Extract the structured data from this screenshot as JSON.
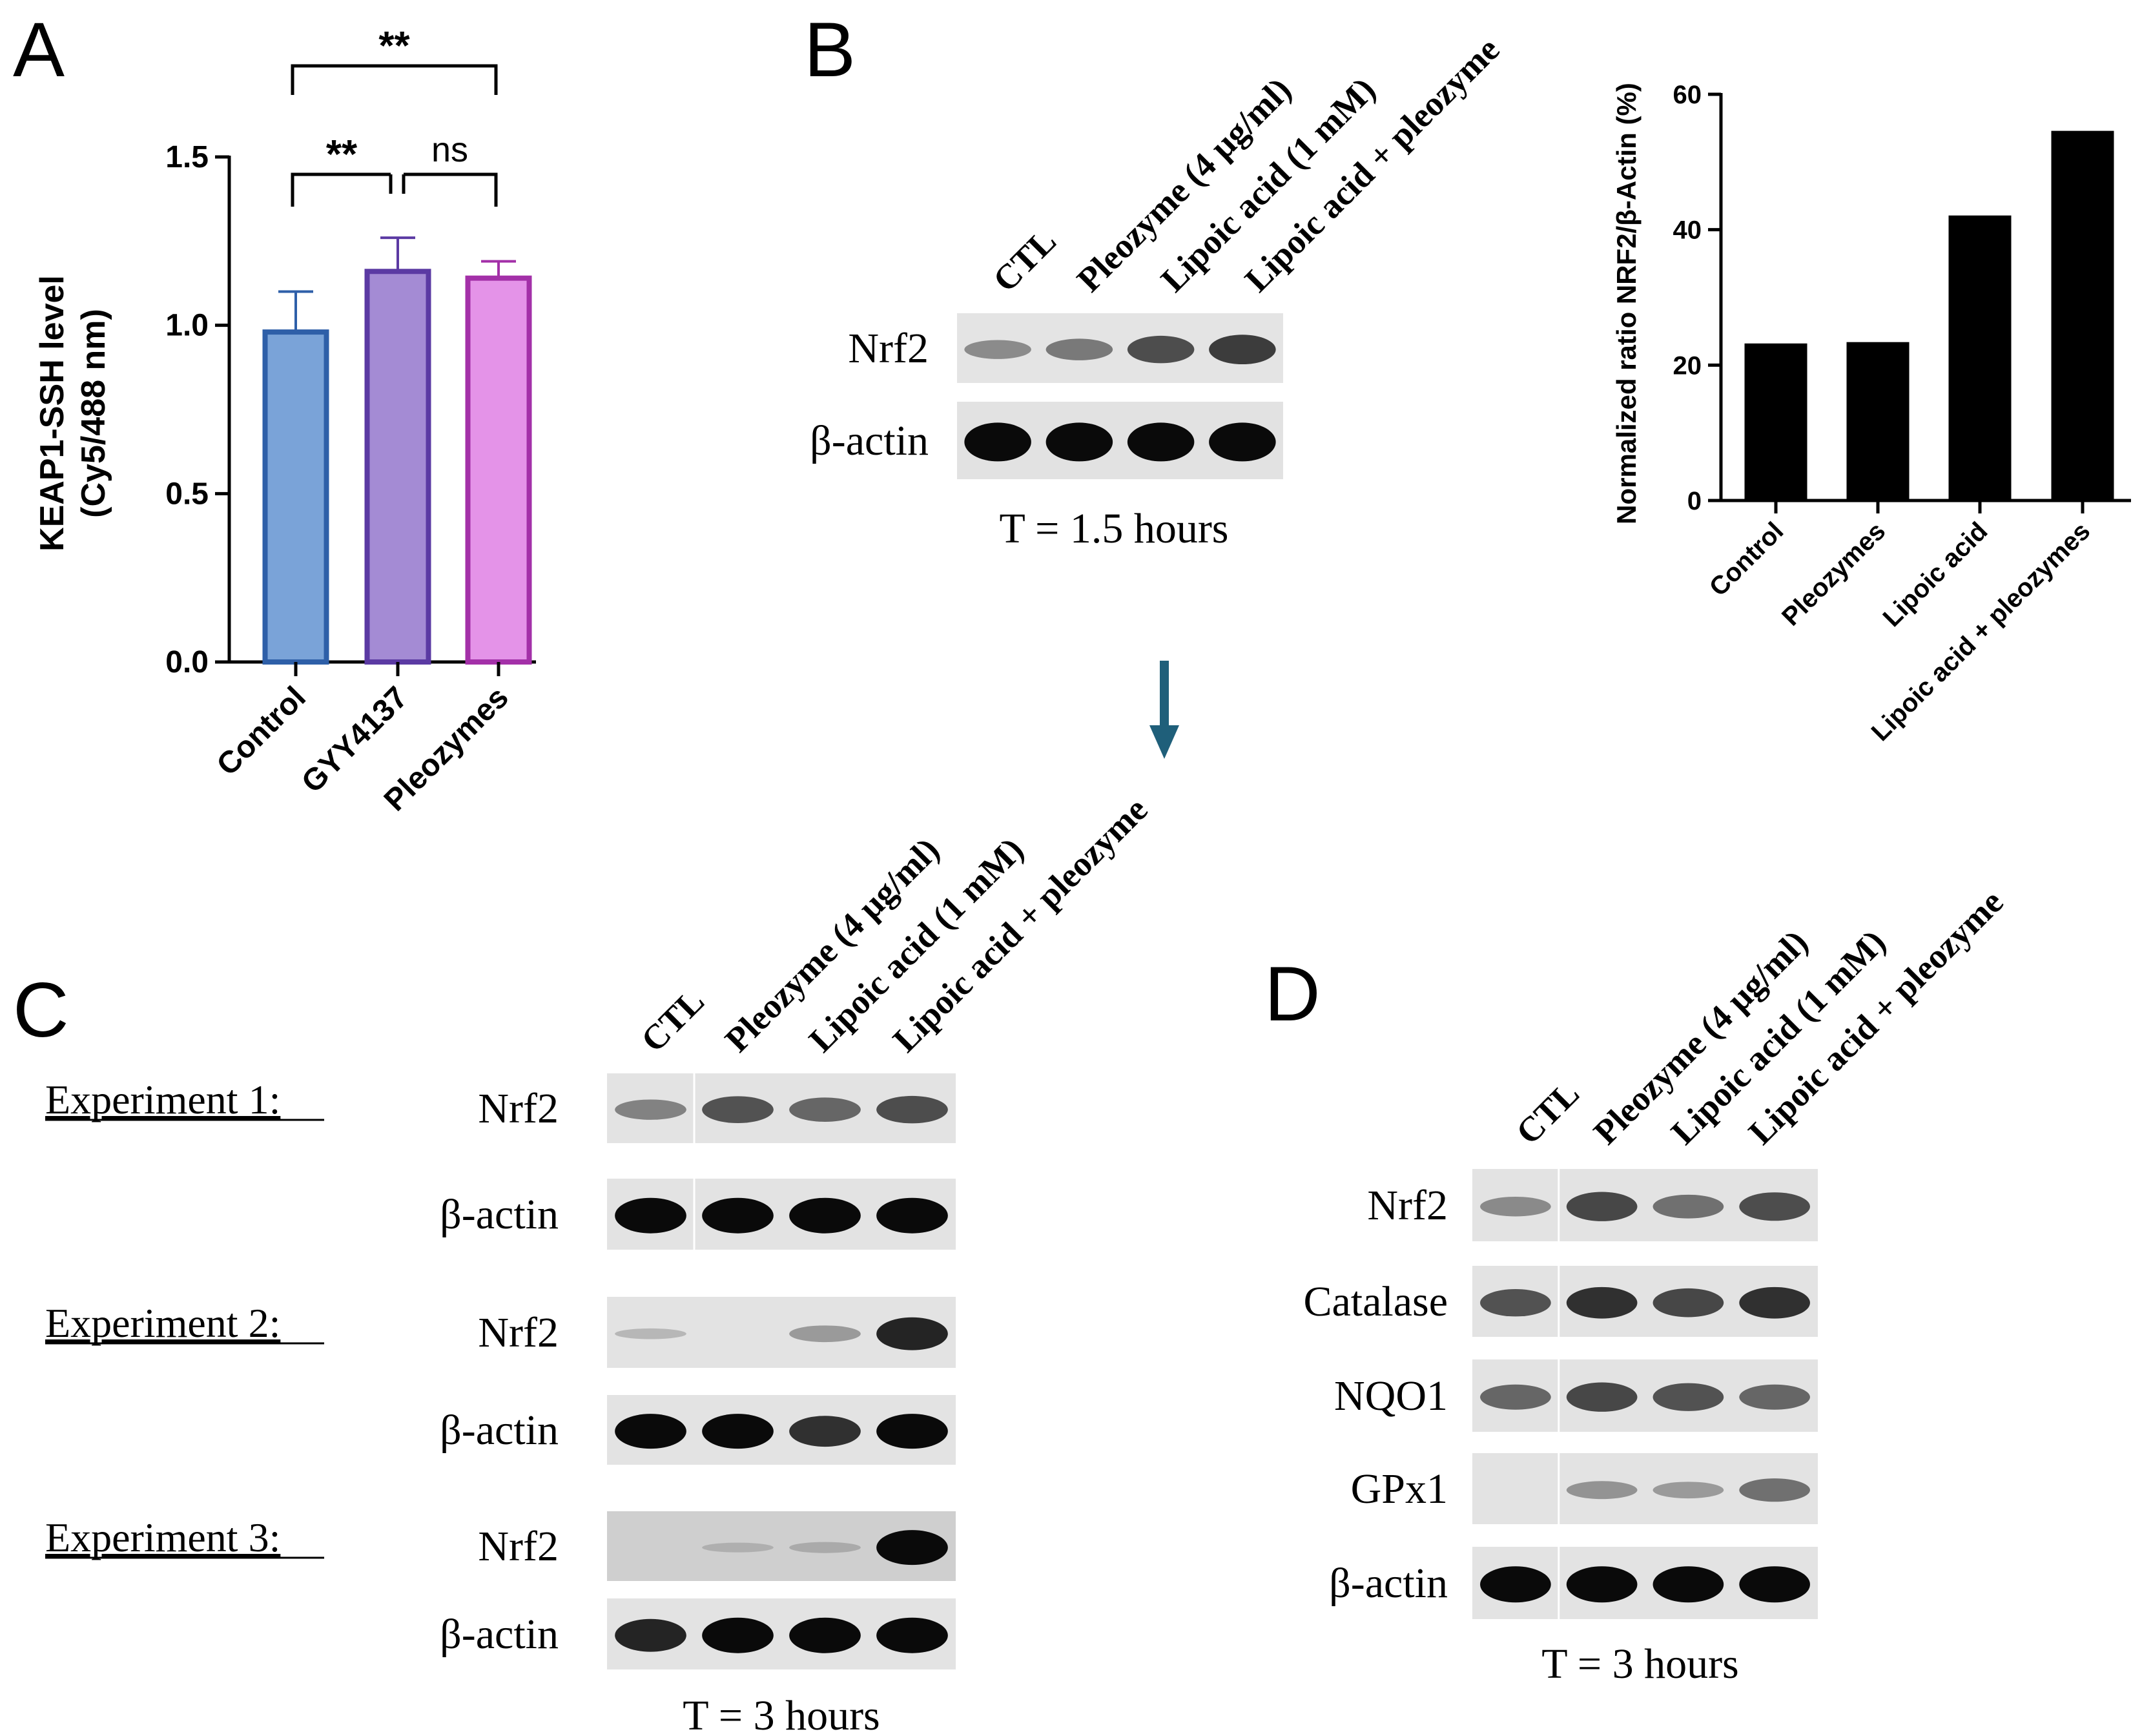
{
  "panels": {
    "A": "A",
    "B": "B",
    "C": "C",
    "D": "D"
  },
  "lane_labels": [
    "CTL",
    "Pleozyme (4 µg/ml)",
    "Lipoic acid (1 mM)",
    "Lipoic acid + pleozyme"
  ],
  "blot_B": {
    "rows": [
      {
        "label": "Nrf2",
        "intensity": [
          0.4,
          0.5,
          0.72,
          0.8
        ]
      },
      {
        "label": "β-actin",
        "intensity": [
          1.0,
          1.0,
          1.0,
          1.0
        ]
      }
    ],
    "time": "T = 1.5 hours"
  },
  "blot_C": {
    "experiments": [
      {
        "label": "Experiment 1:",
        "rows": [
          {
            "label": "Nrf2",
            "intensity": [
              0.45,
              0.7,
              0.6,
              0.72
            ]
          },
          {
            "label": "β-actin",
            "intensity": [
              1.0,
              1.0,
              1.0,
              1.0
            ]
          }
        ]
      },
      {
        "label": "Experiment 2:",
        "rows": [
          {
            "label": "Nrf2",
            "intensity": [
              0.08,
              0.0,
              0.3,
              0.9
            ]
          },
          {
            "label": "β-actin",
            "intensity": [
              1.0,
              1.0,
              0.85,
              1.0
            ]
          }
        ]
      },
      {
        "label": "Experiment 3:",
        "rows": [
          {
            "label": "Nrf2",
            "intensity": [
              0.0,
              0.05,
              0.1,
              1.0
            ]
          },
          {
            "label": "β-actin",
            "intensity": [
              0.9,
              1.0,
              1.0,
              1.0
            ]
          }
        ]
      }
    ],
    "time": "T = 3 hours"
  },
  "blot_D": {
    "rows": [
      {
        "label": "Nrf2",
        "intensity": [
          0.4,
          0.75,
          0.55,
          0.72
        ]
      },
      {
        "label": "Catalase",
        "intensity": [
          0.7,
          0.85,
          0.75,
          0.85
        ]
      },
      {
        "label": "NQO1",
        "intensity": [
          0.6,
          0.75,
          0.7,
          0.6
        ]
      },
      {
        "label": "GPx1",
        "intensity": [
          0.0,
          0.35,
          0.3,
          0.55
        ]
      },
      {
        "label": "β-actin",
        "intensity": [
          1.0,
          1.0,
          1.0,
          1.0
        ]
      }
    ],
    "time": "T = 3 hours"
  },
  "chart_data": [
    {
      "type": "bar",
      "panel": "A",
      "categories": [
        "Control",
        "GYY4137",
        "Pleozymes"
      ],
      "values": [
        0.98,
        1.16,
        1.14
      ],
      "errors": [
        0.12,
        0.1,
        0.05
      ],
      "colors": [
        "#7aa3d8",
        "#a48bd4",
        "#e493e8"
      ],
      "edge_colors": [
        "#2e5fa8",
        "#5b3aa3",
        "#a330a8"
      ],
      "xlabel": "",
      "ylabel": "KEAP1-SSH level",
      "ylabel2": "(Cy5/488 nm)",
      "ylim": [
        0,
        1.5
      ],
      "yticks": [
        "0.0",
        "0.5",
        "1.0",
        "1.5"
      ],
      "significance": [
        {
          "from": "Control",
          "to": "GYY4137",
          "label": "**"
        },
        {
          "from": "GYY4137",
          "to": "Pleozymes",
          "label": "ns"
        },
        {
          "from": "Control",
          "to": "Pleozymes",
          "label": "**"
        }
      ]
    },
    {
      "type": "bar",
      "panel": "B",
      "categories": [
        "Control",
        "Pleozymes",
        "Lipoic acid",
        "Lipoic acid + pleozymes"
      ],
      "values": [
        23.2,
        23.4,
        42.1,
        54.6
      ],
      "color": "#000000",
      "ylabel": "Normalized ratio NRF2/β-Actin (%)",
      "ylim": [
        0,
        60
      ],
      "yticks": [
        "0",
        "20",
        "40",
        "60"
      ]
    }
  ],
  "arrow_color": "#1f5f7a"
}
